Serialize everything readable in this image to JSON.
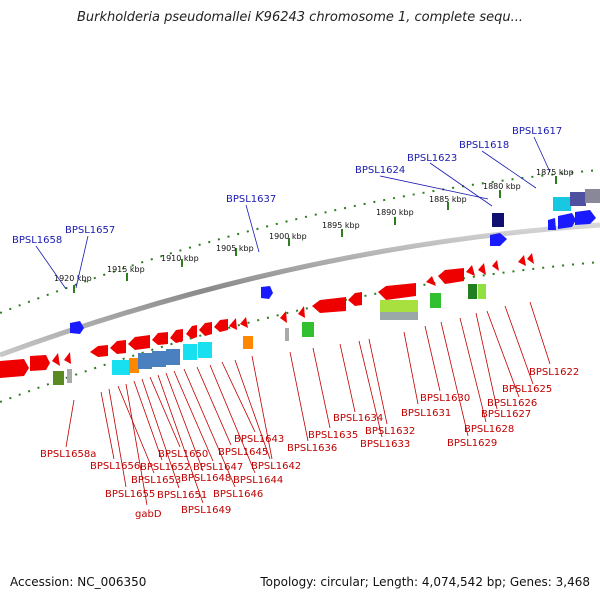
{
  "title": "Burkholderia pseudomallei K96243 chromosome 1, complete sequ...",
  "footer": {
    "accession": "Accession: NC_006350",
    "summary": "Topology: circular; Length: 4,074,542 bp; Genes: 3,468"
  },
  "colors": {
    "backbone": "#8a8a8a",
    "tick": "#2e7d1e",
    "forward_gene": "#1a1aff",
    "reverse_gene": "#ff0000",
    "label_blue": "#1a1ab0",
    "label_red": "#c00000"
  },
  "kbp_ticks": [
    "1920 kbp",
    "1915 kbp",
    "1910 kbp",
    "1905 kbp",
    "1900 kbp",
    "1895 kbp",
    "1890 kbp",
    "1885 kbp",
    "1880 kbp",
    "1875 kbp"
  ],
  "labels_top": [
    "BPSL1658",
    "BPSL1657",
    "BPSL1637",
    "BPSL1624",
    "BPSL1623",
    "BPSL1618",
    "BPSL1617"
  ],
  "labels_bottom": [
    "BPSL1658a",
    "BPSL1656",
    "BPSL1655",
    "BPSL1653",
    "gabD",
    "BPSL1652",
    "BPSL1651",
    "BPSL1650",
    "BPSL1649",
    "BPSL1648",
    "BPSL1647",
    "BPSL1646",
    "BPSL1645",
    "BPSL1644",
    "BPSL1643",
    "BPSL1642",
    "BPSL1636",
    "BPSL1635",
    "BPSL1634",
    "BPSL1633",
    "BPSL1632",
    "BPSL1631",
    "BPSL1630",
    "BPSL1629",
    "BPSL1628",
    "BPSL1627",
    "BPSL1626",
    "BPSL1625",
    "BPSL1622"
  ]
}
